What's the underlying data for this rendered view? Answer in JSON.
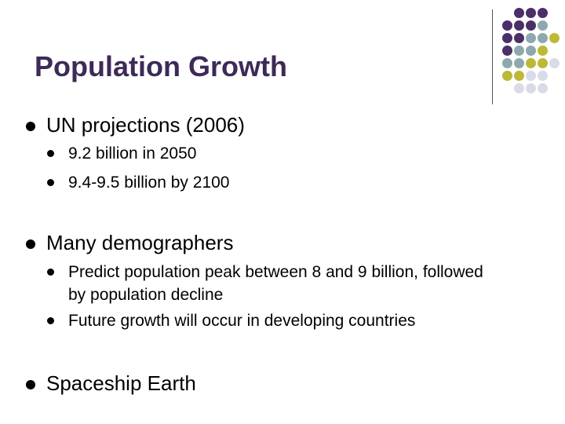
{
  "slide": {
    "title": "Population Growth",
    "bullets": [
      {
        "text": "UN projections (2006)",
        "sub": [
          "9.2 billion in 2050",
          "9.4-9.5 billion by 2100"
        ]
      },
      {
        "text": "Many demographers",
        "sub": [
          "Predict population peak between 8 and 9 billion, followed",
          "by population decline",
          "Future growth will occur in developing countries"
        ]
      },
      {
        "text": "Spaceship Earth",
        "sub": []
      }
    ]
  },
  "colors": {
    "title": "#3d2a58",
    "purple": "#4a2f68",
    "teal": "#8ea9ae",
    "olive": "#bdb938",
    "lavender": "#d9dbe6"
  }
}
